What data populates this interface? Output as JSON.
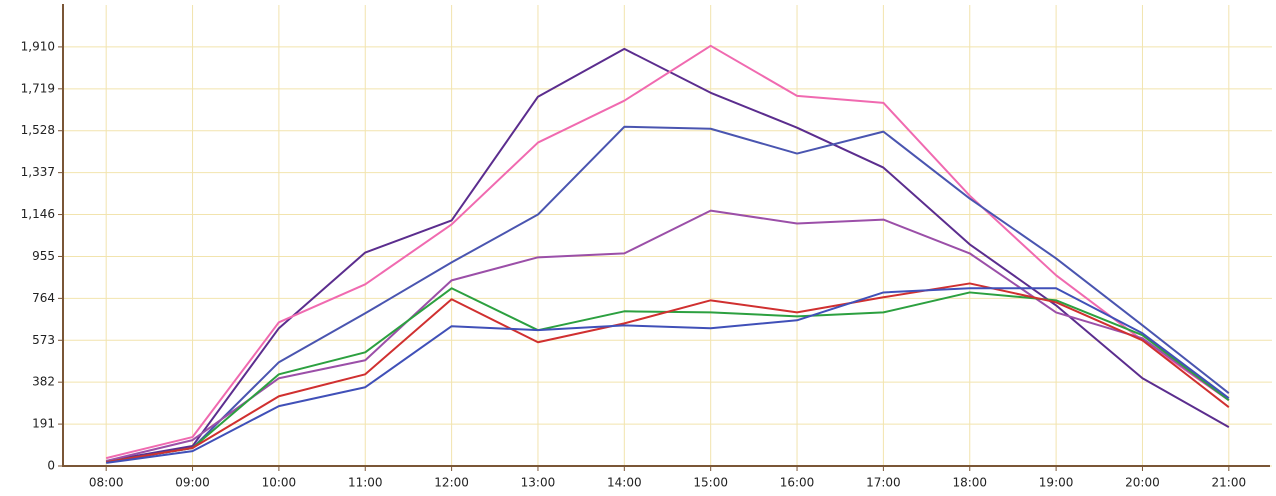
{
  "chart_data": {
    "type": "line",
    "categories": [
      "08:00",
      "09:00",
      "10:00",
      "11:00",
      "12:00",
      "13:00",
      "14:00",
      "15:00",
      "16:00",
      "17:00",
      "18:00",
      "19:00",
      "20:00",
      "21:00"
    ],
    "series": [
      {
        "color": "#5b2d8e",
        "values": [
          23,
          91,
          628,
          973,
          1119,
          1683,
          1901,
          1701,
          1542,
          1360,
          1010,
          732,
          400,
          177
        ]
      },
      {
        "color": "#f06ab0",
        "values": [
          36,
          132,
          655,
          828,
          1101,
          1474,
          1665,
          1915,
          1687,
          1655,
          1232,
          869,
          573,
          300
        ]
      },
      {
        "color": "#4a55b0",
        "values": [
          18,
          82,
          473,
          696,
          928,
          1146,
          1546,
          1537,
          1424,
          1524,
          1219,
          946,
          641,
          332
        ]
      },
      {
        "color": "#9b4fa8",
        "values": [
          23,
          118,
          400,
          482,
          846,
          951,
          969,
          1164,
          1105,
          1123,
          969,
          700,
          582,
          300
        ]
      },
      {
        "color": "#2ca040",
        "values": [
          18,
          82,
          418,
          518,
          810,
          619,
          705,
          700,
          682,
          700,
          791,
          755,
          596,
          300
        ]
      },
      {
        "color": "#d03030",
        "values": [
          18,
          82,
          318,
          418,
          760,
          564,
          650,
          755,
          700,
          769,
          832,
          746,
          573,
          268
        ]
      },
      {
        "color": "#4050b8",
        "values": [
          14,
          68,
          273,
          359,
          637,
          619,
          641,
          628,
          664,
          791,
          810,
          810,
          605,
          309
        ]
      }
    ],
    "ylim": [
      0,
      2101
    ],
    "yticks": [
      0,
      191,
      382,
      573,
      764,
      955,
      {
        "value": 1146,
        "label": "1,146"
      },
      {
        "value": 1337,
        "label": "1,337"
      },
      {
        "value": 1528,
        "label": "1,528"
      },
      {
        "value": 1719,
        "label": "1,719"
      },
      {
        "value": 1910,
        "label": "1,910"
      }
    ],
    "grid": true
  }
}
